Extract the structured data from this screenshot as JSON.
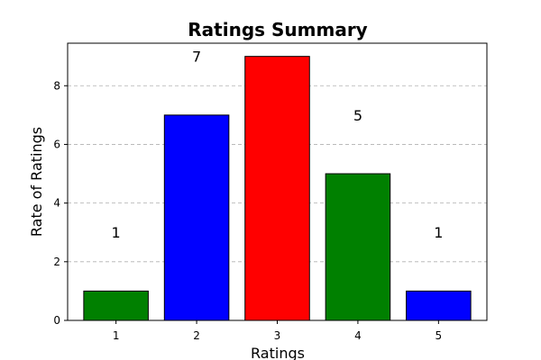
{
  "chart_data": {
    "type": "bar",
    "title": "Ratings Summary",
    "xlabel": "Ratings",
    "ylabel": "Rate of Ratings",
    "categories": [
      "1",
      "2",
      "3",
      "4",
      "5"
    ],
    "values": [
      1,
      7,
      9,
      5,
      1
    ],
    "data_labels": [
      "1",
      "7",
      "",
      "5",
      "1"
    ],
    "colors": [
      "#008000",
      "#0000ff",
      "#ff0000",
      "#008000",
      "#0000ff"
    ],
    "edge_color": "#000000",
    "ylim": [
      0,
      9.45
    ],
    "yticks": [
      0,
      2,
      4,
      6,
      8
    ],
    "grid": {
      "y": true,
      "style": "dashed",
      "color": "#b0b0b0"
    },
    "legend": "none"
  }
}
